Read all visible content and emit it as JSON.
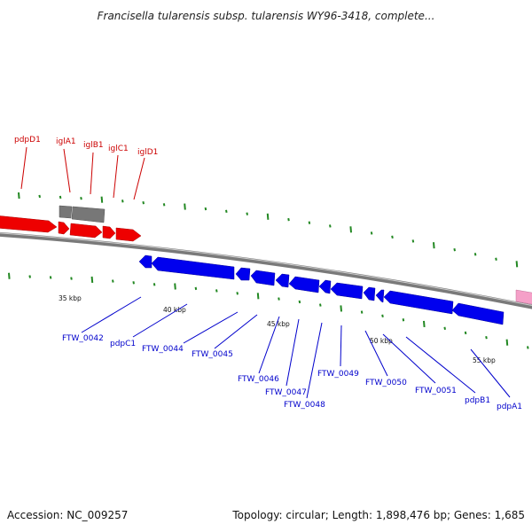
{
  "title": "Francisella tularensis subsp. tularensis WY96-3418, complete...",
  "footer": {
    "accession": "Accession: NC_009257",
    "summary": "Topology: circular; Length: 1,898,476 bp; Genes: 1,685"
  },
  "colors": {
    "forward_gene": "#ee0000",
    "reverse_gene": "#0000ee",
    "other_gene": "#777777",
    "rna": "#f5a0c8",
    "ticks": "#228822",
    "top_label": "#cc0000",
    "bottom_label": "#0000cc"
  },
  "top_labels": [
    "pdpD1",
    "iglA1",
    "iglB1",
    "iglC1",
    "iglD1"
  ],
  "bottom_labels": [
    "FTW_0042",
    "pdpC1",
    "FTW_0044",
    "FTW_0045",
    "FTW_0046",
    "FTW_0047",
    "FTW_0048",
    "FTW_0049",
    "FTW_0050",
    "FTW_0051",
    "pdpB1",
    "pdpA1"
  ],
  "kbp_labels": [
    "35 kbp",
    "40 kbp",
    "45 kbp",
    "50 kbp",
    "55 kbp"
  ]
}
